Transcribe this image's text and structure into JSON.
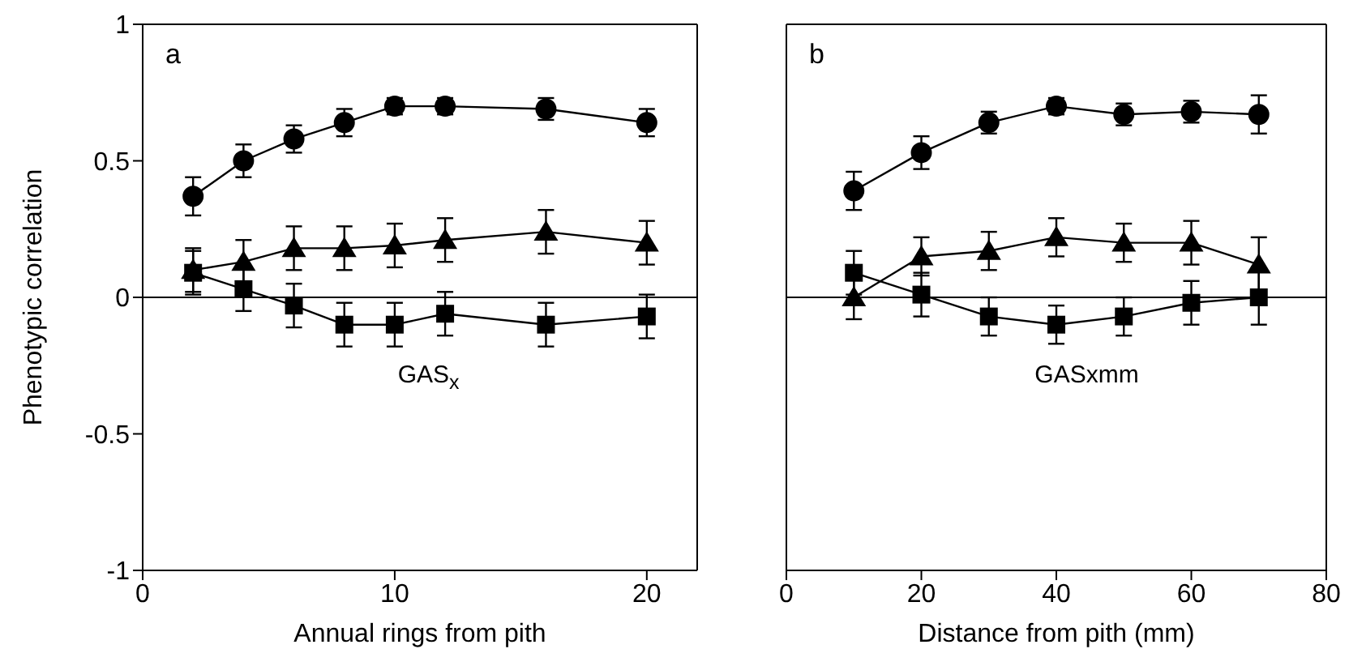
{
  "chart_data": [
    {
      "type": "line",
      "xlabel": "Annual rings from pith",
      "ylabel": "Phenotypic correlation",
      "x": [
        2,
        4,
        6,
        8,
        10,
        12,
        16,
        20
      ],
      "xlim": [
        0,
        22
      ],
      "xticks": [
        0,
        10,
        20
      ],
      "ylim": [
        -1,
        1
      ],
      "yticks": [
        -1,
        -0.5,
        0,
        0.5,
        1
      ],
      "grid": false,
      "legend": false,
      "line_style": "solid",
      "series": [
        {
          "color": "#000000",
          "marker": "circle",
          "values": [
            0.37,
            0.5,
            0.58,
            0.64,
            0.7,
            0.7,
            0.69,
            0.64
          ],
          "errors": [
            0.07,
            0.06,
            0.05,
            0.05,
            0.03,
            0.03,
            0.04,
            0.05
          ]
        },
        {
          "color": "#000000",
          "marker": "triangle",
          "values": [
            0.1,
            0.13,
            0.18,
            0.18,
            0.19,
            0.21,
            0.24,
            0.2
          ],
          "errors": [
            0.08,
            0.08,
            0.08,
            0.08,
            0.08,
            0.08,
            0.08,
            0.08
          ]
        },
        {
          "color": "#000000",
          "marker": "square",
          "values": [
            0.09,
            0.03,
            -0.03,
            -0.1,
            -0.1,
            -0.06,
            -0.1,
            -0.07
          ],
          "errors": [
            0.08,
            0.08,
            0.08,
            0.08,
            0.08,
            0.08,
            0.08,
            0.08
          ]
        }
      ],
      "ref_lines": [
        {
          "axis": "y",
          "value": 0,
          "color": "#000000"
        }
      ],
      "annotations": [
        "a",
        "GAS$_{x}$"
      ]
    },
    {
      "type": "line",
      "xlabel": "Distance from pith (mm)",
      "x": [
        10,
        20,
        30,
        40,
        50,
        60,
        70
      ],
      "xlim": [
        0,
        80
      ],
      "xticks": [
        0,
        20,
        40,
        60,
        80
      ],
      "ylim": [
        -1,
        1
      ],
      "yticks": [
        -1,
        -0.5,
        0,
        0.5,
        1
      ],
      "tick_labels": "x",
      "grid": false,
      "legend": false,
      "line_style": "solid",
      "series": [
        {
          "color": "#000000",
          "marker": "circle",
          "values": [
            0.39,
            0.53,
            0.64,
            0.7,
            0.67,
            0.68,
            0.67
          ],
          "errors": [
            0.07,
            0.06,
            0.04,
            0.03,
            0.04,
            0.04,
            0.07
          ]
        },
        {
          "color": "#000000",
          "marker": "triangle",
          "values": [
            0.0,
            0.15,
            0.17,
            0.22,
            0.2,
            0.2,
            0.12
          ],
          "errors": [
            0.08,
            0.07,
            0.07,
            0.07,
            0.07,
            0.08,
            0.1
          ]
        },
        {
          "color": "#000000",
          "marker": "square",
          "values": [
            0.09,
            0.01,
            -0.07,
            -0.1,
            -0.07,
            -0.02,
            0.0
          ],
          "errors": [
            0.08,
            0.08,
            0.07,
            0.07,
            0.07,
            0.08,
            0.1
          ]
        }
      ],
      "ref_lines": [
        {
          "axis": "y",
          "value": 0,
          "color": "#000000"
        }
      ],
      "annotations": [
        "b",
        "GASxmm"
      ]
    }
  ]
}
